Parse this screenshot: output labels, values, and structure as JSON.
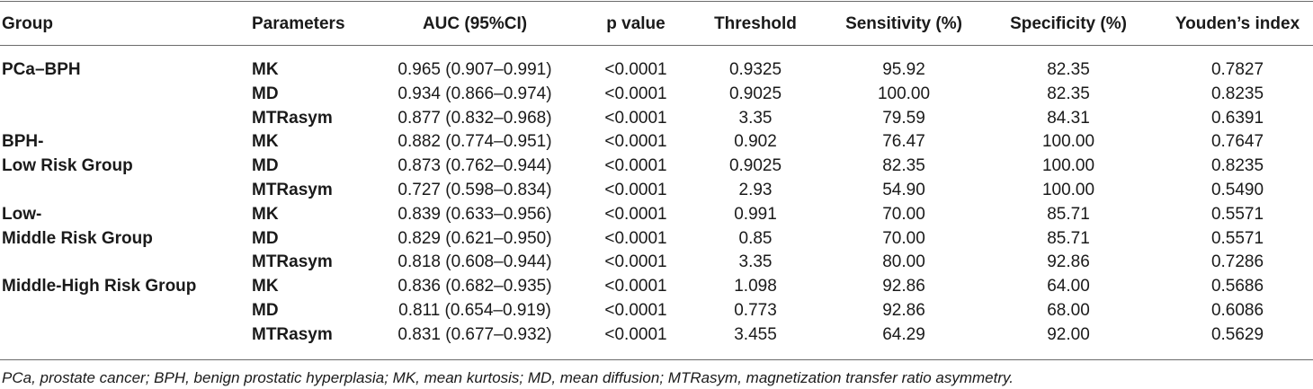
{
  "headers": {
    "group": "Group",
    "parameters": "Parameters",
    "auc": "AUC (95%CI)",
    "p_value": "p value",
    "threshold": "Threshold",
    "sensitivity": "Sensitivity (%)",
    "specificity": "Specificity (%)",
    "youden": "Youden’s index"
  },
  "rows": [
    {
      "group": "PCa–BPH",
      "param": "MK",
      "auc": "0.965 (0.907–0.991)",
      "p": "<0.0001",
      "threshold": "0.9325",
      "sensitivity": "95.92",
      "specificity": "82.35",
      "youden": "0.7827"
    },
    {
      "group": "",
      "param": "MD",
      "auc": "0.934 (0.866–0.974)",
      "p": "<0.0001",
      "threshold": "0.9025",
      "sensitivity": "100.00",
      "specificity": "82.35",
      "youden": "0.8235"
    },
    {
      "group": "",
      "param": "MTRasym",
      "auc": "0.877 (0.832–0.968)",
      "p": "<0.0001",
      "threshold": "3.35",
      "sensitivity": "79.59",
      "specificity": "84.31",
      "youden": "0.6391"
    },
    {
      "group": "BPH-",
      "param": "MK",
      "auc": "0.882 (0.774–0.951)",
      "p": "<0.0001",
      "threshold": "0.902",
      "sensitivity": "76.47",
      "specificity": "100.00",
      "youden": "0.7647"
    },
    {
      "group": "Low Risk Group",
      "param": "MD",
      "auc": "0.873 (0.762–0.944)",
      "p": "<0.0001",
      "threshold": "0.9025",
      "sensitivity": "82.35",
      "specificity": "100.00",
      "youden": "0.8235"
    },
    {
      "group": "",
      "param": "MTRasym",
      "auc": "0.727 (0.598–0.834)",
      "p": "<0.0001",
      "threshold": "2.93",
      "sensitivity": "54.90",
      "specificity": "100.00",
      "youden": "0.5490"
    },
    {
      "group": "Low-",
      "param": "MK",
      "auc": "0.839 (0.633–0.956)",
      "p": "<0.0001",
      "threshold": "0.991",
      "sensitivity": "70.00",
      "specificity": "85.71",
      "youden": "0.5571"
    },
    {
      "group": "Middle Risk Group",
      "param": "MD",
      "auc": "0.829 (0.621–0.950)",
      "p": "<0.0001",
      "threshold": "0.85",
      "sensitivity": "70.00",
      "specificity": "85.71",
      "youden": "0.5571"
    },
    {
      "group": "",
      "param": "MTRasym",
      "auc": "0.818 (0.608–0.944)",
      "p": "<0.0001",
      "threshold": "3.35",
      "sensitivity": "80.00",
      "specificity": "92.86",
      "youden": "0.7286"
    },
    {
      "group": "Middle-High Risk Group",
      "param": "MK",
      "auc": "0.836 (0.682–0.935)",
      "p": "<0.0001",
      "threshold": "1.098",
      "sensitivity": "92.86",
      "specificity": "64.00",
      "youden": "0.5686"
    },
    {
      "group": "",
      "param": "MD",
      "auc": "0.811 (0.654–0.919)",
      "p": "<0.0001",
      "threshold": "0.773",
      "sensitivity": "92.86",
      "specificity": "68.00",
      "youden": "0.6086"
    },
    {
      "group": "",
      "param": "MTRasym",
      "auc": "0.831 (0.677–0.932)",
      "p": "<0.0001",
      "threshold": "3.455",
      "sensitivity": "64.29",
      "specificity": "92.00",
      "youden": "0.5629"
    }
  ],
  "footnote": "PCa, prostate cancer; BPH, benign prostatic hyperplasia; MK, mean kurtosis; MD, mean diffusion; MTRasym, magnetization transfer ratio asymmetry."
}
